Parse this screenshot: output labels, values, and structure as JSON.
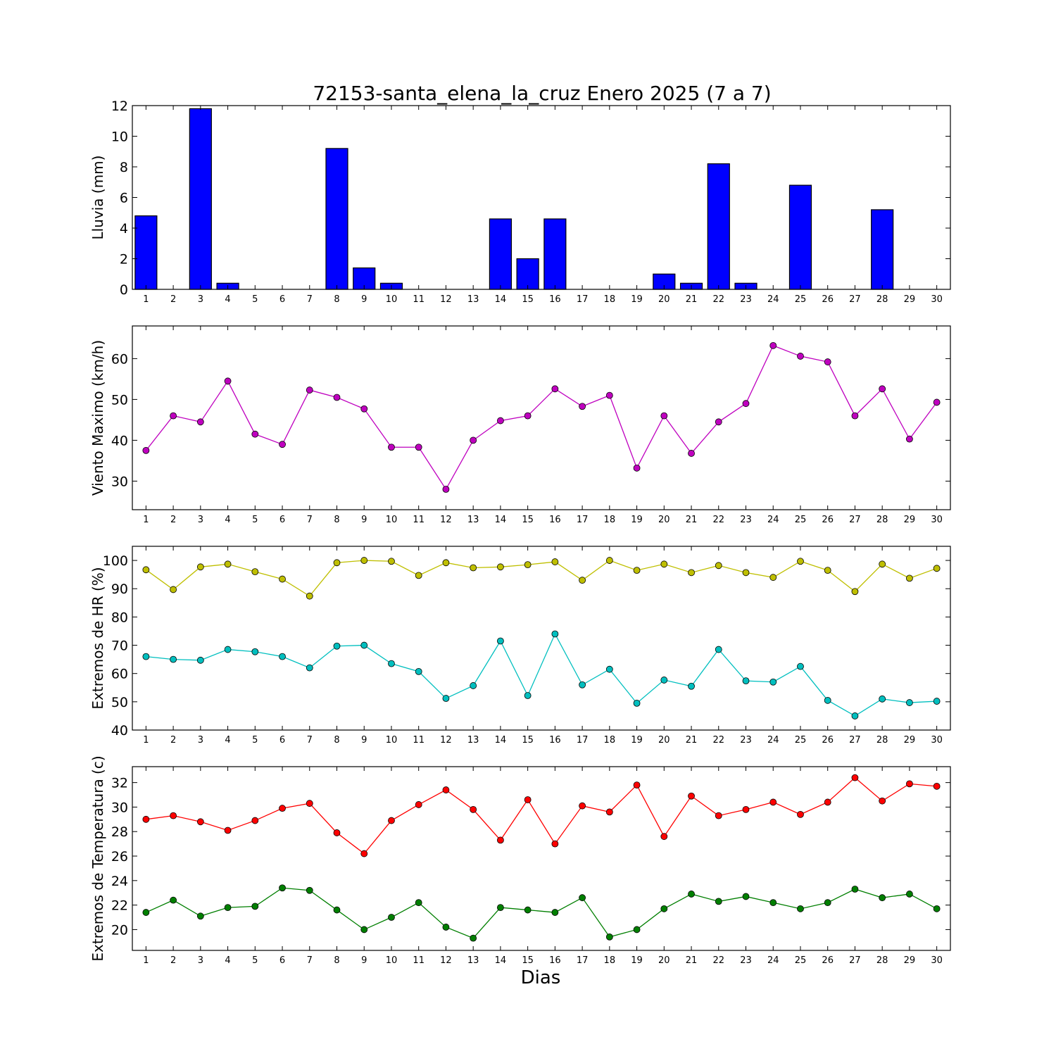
{
  "title": "72153-santa_elena_la_cruz Enero 2025  (7 a 7)",
  "xlabel": "Dias",
  "days": [
    1,
    2,
    3,
    4,
    5,
    6,
    7,
    8,
    9,
    10,
    11,
    12,
    13,
    14,
    15,
    16,
    17,
    18,
    19,
    20,
    21,
    22,
    23,
    24,
    25,
    26,
    27,
    28,
    29,
    30
  ],
  "chart_data": [
    {
      "type": "bar",
      "ylabel": "Lluvia (mm)",
      "ylim": [
        0,
        12
      ],
      "yticks": [
        0,
        2,
        4,
        6,
        8,
        10,
        12
      ],
      "series": [
        {
          "color": "#0000ff",
          "values": [
            4.8,
            0,
            11.8,
            0.4,
            0,
            0,
            0,
            9.2,
            1.4,
            0.4,
            0,
            0,
            0,
            4.6,
            2.0,
            4.6,
            0,
            0,
            0,
            1.0,
            0.4,
            8.2,
            0.4,
            0,
            6.8,
            0,
            0,
            5.2,
            0,
            0
          ]
        }
      ]
    },
    {
      "type": "line",
      "ylabel": "Viento Maximo (km/h)",
      "ylim": [
        23,
        68
      ],
      "yticks": [
        30,
        40,
        50,
        60
      ],
      "series": [
        {
          "color": "#bf00bf",
          "values": [
            37.5,
            46,
            44.5,
            54.5,
            41.5,
            39,
            52.3,
            50.5,
            47.7,
            38.3,
            38.3,
            28,
            40,
            44.8,
            46,
            52.6,
            48.3,
            51,
            33.2,
            46,
            36.8,
            44.5,
            49,
            63.2,
            60.6,
            59.2,
            46,
            52.6,
            40.3,
            49.3
          ]
        }
      ]
    },
    {
      "type": "line",
      "ylabel": "Extremos de HR (%)",
      "ylim": [
        40,
        105
      ],
      "yticks": [
        40,
        50,
        60,
        70,
        80,
        90,
        100
      ],
      "series": [
        {
          "color": "#bfbf00",
          "values": [
            96.7,
            89.7,
            97.7,
            98.7,
            96,
            93.4,
            87.4,
            99.2,
            100,
            99.7,
            94.7,
            99.2,
            97.4,
            97.7,
            98.5,
            99.5,
            93,
            100,
            96.5,
            98.7,
            95.7,
            98.2,
            95.7,
            94,
            99.7,
            96.5,
            89,
            98.7,
            93.7,
            97.2
          ]
        },
        {
          "color": "#00bfbf",
          "values": [
            66,
            65,
            64.7,
            68.5,
            67.7,
            66,
            62,
            69.7,
            70,
            63.5,
            60.7,
            51.2,
            55.7,
            71.5,
            52.2,
            74,
            56,
            61.5,
            49.5,
            57.7,
            55.5,
            68.5,
            57.4,
            57,
            62.5,
            50.5,
            45,
            51,
            49.7,
            50.2
          ]
        }
      ]
    },
    {
      "type": "line",
      "ylabel": "Extremos de Temperatura (c)",
      "ylim": [
        18.3,
        33.3
      ],
      "yticks": [
        20,
        22,
        24,
        26,
        28,
        30,
        32
      ],
      "series": [
        {
          "color": "#ff0000",
          "values": [
            29,
            29.3,
            28.8,
            28.1,
            28.9,
            29.9,
            30.3,
            27.9,
            26.2,
            28.9,
            30.2,
            31.4,
            29.8,
            27.3,
            30.6,
            27,
            30.1,
            29.6,
            31.8,
            27.6,
            30.9,
            29.3,
            29.8,
            30.4,
            29.4,
            30.4,
            32.4,
            30.5,
            31.9,
            31.7
          ]
        },
        {
          "color": "#007f00",
          "values": [
            21.4,
            22.4,
            21.1,
            21.8,
            21.9,
            23.4,
            23.2,
            21.6,
            20,
            21,
            22.2,
            20.2,
            19.3,
            21.8,
            21.6,
            21.4,
            22.6,
            19.4,
            20,
            21.7,
            22.9,
            22.3,
            22.7,
            22.2,
            21.7,
            22.2,
            23.3,
            22.6,
            22.9,
            21.7
          ]
        }
      ]
    }
  ]
}
